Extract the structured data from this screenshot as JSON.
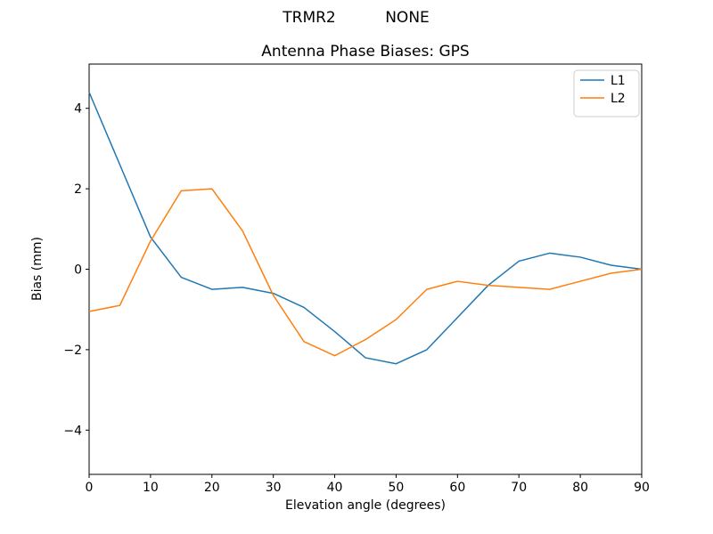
{
  "suptitle": {
    "left": "TRMR2",
    "right": "NONE"
  },
  "chart_data": {
    "type": "line",
    "title": "Antenna Phase Biases: GPS",
    "xlabel": "Elevation angle (degrees)",
    "ylabel": "Bias (mm)",
    "x": [
      0,
      5,
      10,
      15,
      20,
      25,
      30,
      35,
      40,
      45,
      50,
      55,
      60,
      65,
      70,
      75,
      80,
      85,
      90
    ],
    "series": [
      {
        "name": "L1",
        "color": "#1f77b4",
        "values": [
          4.4,
          2.6,
          0.8,
          -0.2,
          -0.5,
          -0.45,
          -0.6,
          -0.95,
          -1.55,
          -2.2,
          -2.35,
          -2.0,
          -1.2,
          -0.4,
          0.2,
          0.4,
          0.3,
          0.1,
          0.0
        ]
      },
      {
        "name": "L2",
        "color": "#ff7f0e",
        "values": [
          -1.05,
          -0.9,
          0.7,
          1.95,
          2.0,
          0.95,
          -0.65,
          -1.8,
          -2.15,
          -1.75,
          -1.25,
          -0.5,
          -0.3,
          -0.4,
          -0.45,
          -0.5,
          -0.3,
          -0.1,
          0.0
        ]
      }
    ],
    "xlim": [
      0,
      90
    ],
    "ylim": [
      -5.1,
      5.1
    ],
    "xticks": [
      0,
      10,
      20,
      30,
      40,
      50,
      60,
      70,
      80,
      90
    ],
    "yticks": [
      -4,
      -2,
      0,
      2,
      4
    ],
    "grid": false,
    "legend_position": "upper right"
  }
}
